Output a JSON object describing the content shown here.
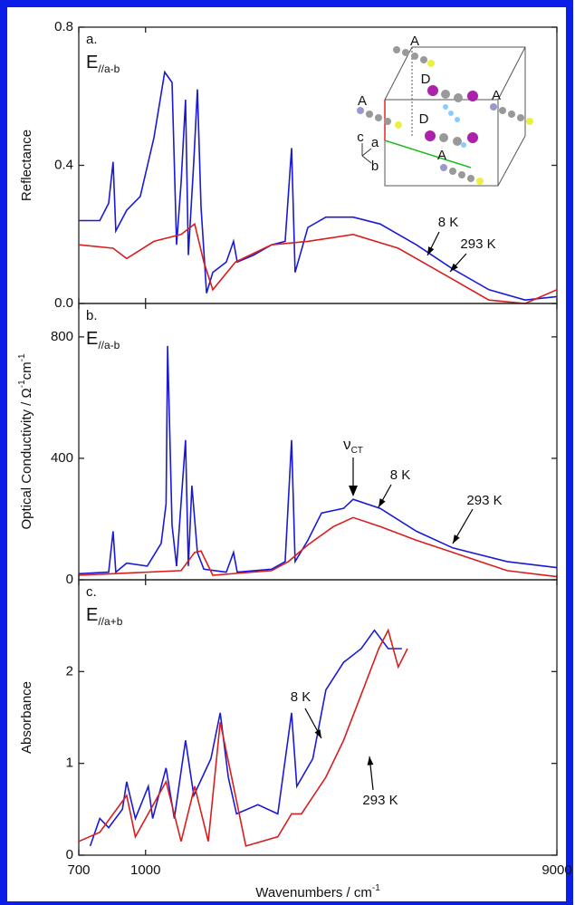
{
  "chart_data": [
    {
      "type": "line",
      "panel_label": "a.",
      "field_label": "E",
      "field_subscript": "//a-b",
      "ylabel": [
        "Reflectance"
      ],
      "xscale": "log",
      "xlim": [
        700,
        9000
      ],
      "ylim": [
        0,
        0.8
      ],
      "yticks": [
        {
          "value": 0,
          "label": "0.0"
        },
        0.4,
        0.8
      ],
      "series": [
        {
          "name": "8 K",
          "color": "#1a1ad6",
          "x": [
            700,
            783,
            821,
            841,
            853,
            904,
            972,
            1046,
            1108,
            1152,
            1180,
            1209,
            1238,
            1257,
            1294,
            1319,
            1345,
            1385,
            1432,
            1539,
            1600,
            1632,
            1780,
            1961,
            2108,
            2181,
            2223,
            2380,
            2621,
            3031,
            3503,
            4249,
            5160,
            6258,
            7593,
            9000
          ],
          "values": [
            0.24,
            0.24,
            0.29,
            0.41,
            0.21,
            0.27,
            0.31,
            0.48,
            0.67,
            0.64,
            0.17,
            0.35,
            0.59,
            0.14,
            0.41,
            0.62,
            0.28,
            0.03,
            0.09,
            0.12,
            0.18,
            0.12,
            0.14,
            0.17,
            0.18,
            0.45,
            0.09,
            0.22,
            0.25,
            0.25,
            0.23,
            0.17,
            0.1,
            0.04,
            0.01,
            0.02
          ]
        },
        {
          "name": "293 K",
          "color": "#d81e1e",
          "x": [
            700,
            841,
            904,
            1046,
            1209,
            1300,
            1365,
            1432,
            1616,
            1961,
            2380,
            3031,
            3857,
            5160,
            6258,
            7593,
            9000
          ],
          "values": [
            0.17,
            0.16,
            0.13,
            0.18,
            0.2,
            0.23,
            0.12,
            0.04,
            0.12,
            0.17,
            0.18,
            0.2,
            0.16,
            0.07,
            0.01,
            0.0,
            0.04
          ]
        }
      ],
      "inset": {
        "labels": [
          "A",
          "A",
          "A",
          "A",
          "D",
          "D",
          "c",
          "a",
          "b"
        ]
      }
    },
    {
      "type": "line",
      "panel_label": "b.",
      "field_label": "E",
      "field_subscript": "//a-b",
      "ylabel": [
        "Optical Conductivity / Ω",
        "-1",
        "cm",
        "-1"
      ],
      "xscale": "log",
      "xlim": [
        700,
        9000
      ],
      "ylim": [
        0,
        910
      ],
      "yticks": [
        0,
        400,
        800
      ],
      "annotation": {
        "text": "ν",
        "subscript": "CT"
      },
      "series": [
        {
          "name": "8 K",
          "color": "#1a1ad6",
          "x": [
            700,
            821,
            841,
            853,
            904,
            1009,
            1087,
            1116,
            1125,
            1152,
            1180,
            1238,
            1257,
            1281,
            1319,
            1365,
            1539,
            1600,
            1632,
            1961,
            2108,
            2181,
            2223,
            2380,
            2560,
            2880,
            3031,
            3503,
            4249,
            5160,
            6897,
            9000
          ],
          "values": [
            20,
            25,
            160,
            25,
            55,
            45,
            120,
            250,
            770,
            180,
            45,
            460,
            45,
            310,
            90,
            35,
            25,
            90,
            25,
            35,
            60,
            460,
            60,
            130,
            220,
            235,
            265,
            235,
            160,
            105,
            60,
            40
          ]
        },
        {
          "name": "293 K",
          "color": "#d81e1e",
          "x": [
            700,
            1209,
            1300,
            1345,
            1432,
            1961,
            2145,
            2380,
            2727,
            3031,
            3503,
            4249,
            5160,
            6897,
            9000
          ],
          "values": [
            15,
            30,
            90,
            95,
            15,
            30,
            60,
            115,
            175,
            205,
            175,
            130,
            90,
            30,
            10
          ]
        }
      ]
    },
    {
      "type": "line",
      "panel_label": "c.",
      "field_label": "E",
      "field_subscript": "//a+b",
      "ylabel": [
        "Absorbance"
      ],
      "xlabel": [
        "Wavenumbers / cm",
        "-1"
      ],
      "xscale": "log",
      "xlim": [
        700,
        9000
      ],
      "xticks": [
        700,
        1000,
        9000
      ],
      "ylim": [
        0,
        3.0
      ],
      "yticks": [
        0,
        1,
        2
      ],
      "series": [
        {
          "name": "8 K",
          "color": "#1a1ad6",
          "x": [
            744,
            783,
            821,
            884,
            904,
            947,
            1015,
            1039,
            1116,
            1166,
            1238,
            1294,
            1418,
            1490,
            1556,
            1626,
            1822,
            2027,
            2181,
            2244,
            2443,
            2621,
            2880,
            3164,
            3396,
            3655,
            3932
          ],
          "values": [
            0.1,
            0.4,
            0.3,
            0.5,
            0.8,
            0.4,
            0.75,
            0.4,
            0.95,
            0.4,
            1.25,
            0.65,
            1.05,
            1.55,
            0.85,
            0.45,
            0.55,
            0.45,
            1.55,
            0.75,
            1.05,
            1.8,
            2.1,
            2.25,
            2.45,
            2.25,
            2.25
          ]
        },
        {
          "name": "293 K",
          "color": "#d81e1e",
          "x": [
            700,
            783,
            904,
            947,
            1116,
            1209,
            1300,
            1398,
            1490,
            1600,
            1709,
            2027,
            2181,
            2300,
            2621,
            2880,
            3164,
            3476,
            3655,
            3857,
            4051
          ],
          "values": [
            0.15,
            0.25,
            0.65,
            0.2,
            0.8,
            0.15,
            0.75,
            0.15,
            1.45,
            0.75,
            0.1,
            0.2,
            0.45,
            0.45,
            0.85,
            1.25,
            1.75,
            2.25,
            2.45,
            2.05,
            2.25
          ]
        }
      ]
    }
  ]
}
